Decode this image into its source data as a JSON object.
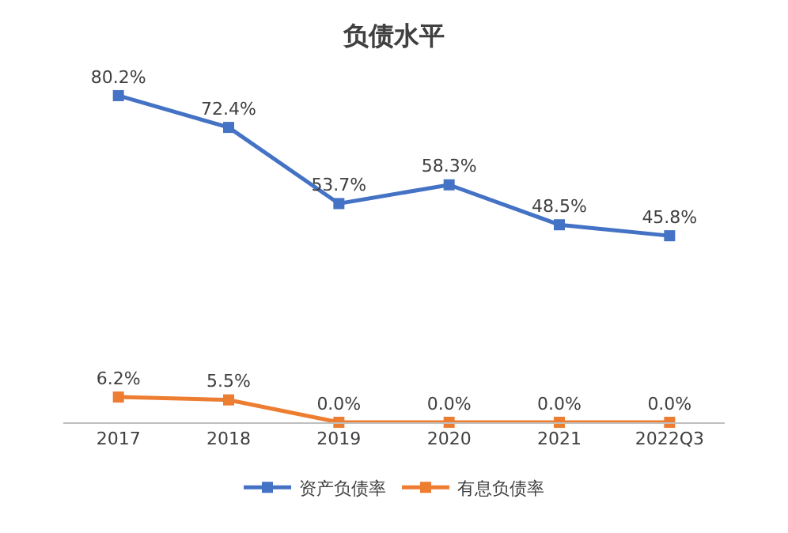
{
  "chart_data": {
    "type": "line",
    "title": "负债水平",
    "categories": [
      "2017",
      "2018",
      "2019",
      "2020",
      "2021",
      "2022Q3"
    ],
    "series": [
      {
        "name": "资产负债率",
        "color": "#4472c4",
        "values": [
          80.2,
          72.4,
          53.7,
          58.3,
          48.5,
          45.8
        ],
        "value_labels": [
          "80.2%",
          "72.4%",
          "53.7%",
          "58.3%",
          "48.5%",
          "45.8%"
        ]
      },
      {
        "name": "有息负债率",
        "color": "#ed7d31",
        "values": [
          6.2,
          5.5,
          0.0,
          0.0,
          0.0,
          0.0
        ],
        "value_labels": [
          "6.2%",
          "5.5%",
          "0.0%",
          "0.0%",
          "0.0%",
          "0.0%"
        ]
      }
    ],
    "marker": "square",
    "line_style": "solid",
    "legend": "bottom",
    "tick_labels": "x"
  }
}
